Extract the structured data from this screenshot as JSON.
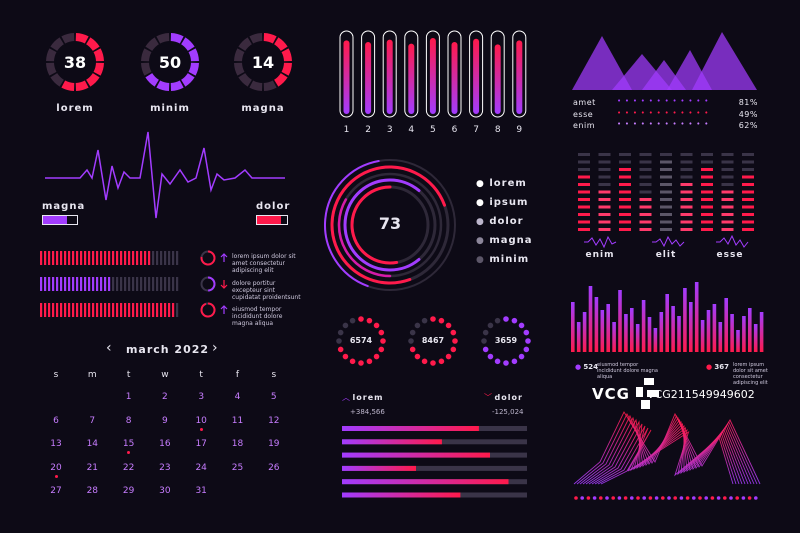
{
  "colors": {
    "bg": "#0d0a16",
    "red": "#ff1a4b",
    "purple": "#a23cff",
    "dim": "#3a3448",
    "magenta": "#d51aa8"
  },
  "gauges": [
    {
      "value": "38",
      "label": "lorem",
      "color": "#ff1a4b",
      "fill": 0.55
    },
    {
      "value": "50",
      "label": "minim",
      "color": "#a23cff",
      "fill": 0.6
    },
    {
      "value": "14",
      "label": "magna",
      "color": "#ff1a4b",
      "fill": 0.35
    }
  ],
  "wave": {
    "left_label": "magna",
    "right_label": "dolor",
    "left_fill": 0.7,
    "right_fill": 0.8
  },
  "progress_rows": [
    {
      "text": "lorem ipsum dolor sit amet consectetur adipiscing elit",
      "direction": "up",
      "color": "#ff1a4b",
      "fill": 0.78
    },
    {
      "text": "dolore portitur excepteur sint cupidatat proidentsunt",
      "direction": "down",
      "color": "#a23cff",
      "fill": 0.5
    },
    {
      "text": "eiusmod tempor incididunt dolore magna aliqua",
      "direction": "up",
      "color": "#ff1a4b",
      "fill": 0.95
    }
  ],
  "calendar": {
    "title": "march 2022",
    "weekdays": [
      "s",
      "m",
      "t",
      "w",
      "t",
      "f",
      "s"
    ],
    "days": [
      "1",
      "2",
      "3",
      "4",
      "5",
      "6",
      "7",
      "8",
      "9",
      "10",
      "11",
      "12",
      "13",
      "14",
      "15",
      "16",
      "17",
      "18",
      "19",
      "20",
      "21",
      "22",
      "23",
      "24",
      "25",
      "26",
      "27",
      "28",
      "29",
      "30",
      "31"
    ],
    "start_col": 2,
    "marked": [
      "10",
      "15",
      "20"
    ]
  },
  "vbars": {
    "labels": [
      "1",
      "2",
      "3",
      "4",
      "5",
      "6",
      "7",
      "8",
      "9"
    ],
    "fills": [
      0.92,
      0.9,
      0.93,
      0.88,
      0.95,
      0.9,
      0.94,
      0.87,
      0.92
    ]
  },
  "ring": {
    "value": "73",
    "legend": [
      "lorem",
      "ipsum",
      "dolor",
      "magna",
      "minim"
    ]
  },
  "dot_gauges": [
    {
      "value": "6574",
      "color": "#ff1a4b"
    },
    {
      "value": "8467",
      "color": "#ff1a4b"
    },
    {
      "value": "3659",
      "color": "#a23cff"
    }
  ],
  "hbars": {
    "left_label": "lorem",
    "left_value": "+384,566",
    "right_label": "dolor",
    "right_value": "-125,024",
    "fills": [
      0.74,
      0.54,
      0.8,
      0.4,
      0.9,
      0.64
    ]
  },
  "mountain_legend": [
    {
      "label": "amet",
      "value": "81%"
    },
    {
      "label": "esse",
      "value": "49%"
    },
    {
      "label": "enim",
      "value": "62%"
    }
  ],
  "equalizer": {
    "labels": [
      "enim",
      "elit",
      "esse"
    ]
  },
  "spark_bars": {
    "left_value": "524",
    "right_value": "367",
    "left_text": "eiusmod tempor incididunt dolore magna aliqua",
    "right_text": "lorem ipsum dolor sit amet consectetur adipiscing elit"
  },
  "watermark": {
    "logo": "VCG",
    "id": "VCG211549949602"
  }
}
